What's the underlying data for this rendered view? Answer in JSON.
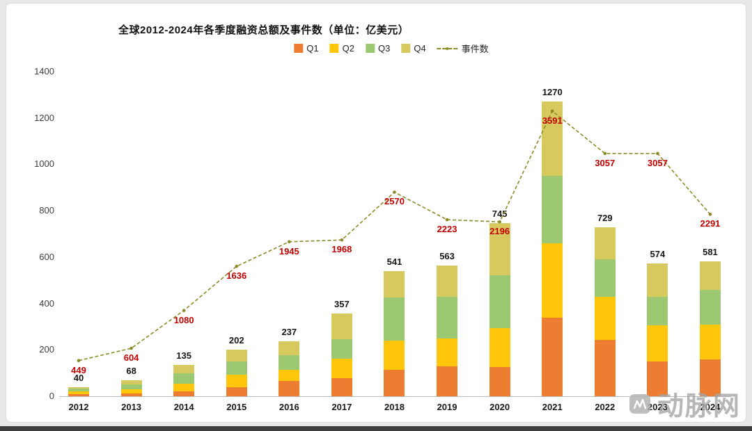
{
  "watermark": {
    "text": "动脉网"
  },
  "chart_data": {
    "type": "bar",
    "stacked": true,
    "title": "全球2012-2024年各季度融资总额及事件数（单位：亿美元）",
    "categories": [
      "2012",
      "2013",
      "2014",
      "2015",
      "2016",
      "2017",
      "2018",
      "2019",
      "2020",
      "2021",
      "2022",
      "2023",
      "2024"
    ],
    "series": [
      {
        "name": "Q1",
        "color": "#ED7D31",
        "values": [
          10,
          12,
          22,
          40,
          65,
          78,
          115,
          130,
          125,
          340,
          242,
          150,
          158
        ]
      },
      {
        "name": "Q2",
        "color": "#FFC60B",
        "values": [
          10,
          18,
          33,
          52,
          50,
          84,
          125,
          120,
          168,
          320,
          188,
          155,
          152
        ]
      },
      {
        "name": "Q3",
        "color": "#9CC871",
        "values": [
          12,
          22,
          45,
          58,
          62,
          85,
          185,
          178,
          228,
          290,
          160,
          125,
          150
        ]
      },
      {
        "name": "Q4",
        "color": "#D8C95E",
        "values": [
          8,
          16,
          35,
          52,
          60,
          110,
          116,
          135,
          224,
          320,
          139,
          144,
          121
        ]
      }
    ],
    "bar_totals": [
      40,
      68,
      135,
      202,
      237,
      357,
      541,
      563,
      745,
      1270,
      729,
      574,
      581
    ],
    "line_series": {
      "name": "事件数",
      "color": "#8C8A26",
      "dashed": true,
      "values": [
        449,
        604,
        1080,
        1636,
        1945,
        1968,
        2570,
        2223,
        2196,
        3591,
        3057,
        3057,
        2291
      ]
    },
    "xlabel": "",
    "ylabel": "",
    "ylim": [
      0,
      1400
    ],
    "y_ticks": [
      0,
      200,
      400,
      600,
      800,
      1000,
      1200,
      1400
    ],
    "line_axis_max": 4088,
    "grid": false,
    "legend_position": "top"
  }
}
